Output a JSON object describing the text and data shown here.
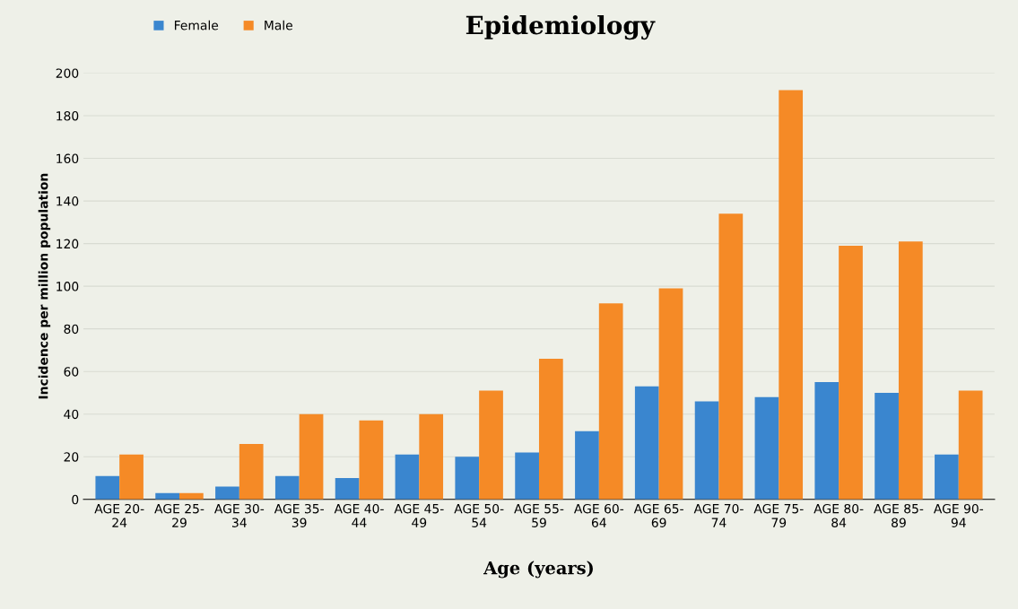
{
  "chart_data": {
    "type": "bar",
    "title": "Epidemiology",
    "xlabel": "Age (years)",
    "ylabel": "Incidence per million population",
    "categories": [
      "AGE 20-\n24",
      "AGE 25-\n29",
      "AGE 30-\n34",
      "AGE 35-\n39",
      "AGE 40-\n44",
      "AGE 45-\n49",
      "AGE 50-\n54",
      "AGE 55-\n59",
      "AGE 60-\n64",
      "AGE 65-\n69",
      "AGE 70-\n74",
      "AGE 75-\n79",
      "AGE 80-\n84",
      "AGE 85-\n89",
      "AGE 90-\n94"
    ],
    "series": [
      {
        "name": "Female",
        "color": "#3a86cf",
        "values": [
          11,
          3,
          6,
          11,
          10,
          21,
          20,
          22,
          32,
          53,
          46,
          48,
          55,
          50,
          21
        ]
      },
      {
        "name": "Male",
        "color": "#f58a26",
        "values": [
          21,
          3,
          26,
          40,
          37,
          40,
          51,
          66,
          92,
          99,
          134,
          192,
          119,
          121,
          51
        ]
      }
    ],
    "ylim": [
      0,
      200
    ],
    "yticks": [
      0,
      20,
      40,
      60,
      80,
      100,
      120,
      140,
      160,
      180,
      200
    ],
    "grid": "y",
    "legend": "top left"
  }
}
